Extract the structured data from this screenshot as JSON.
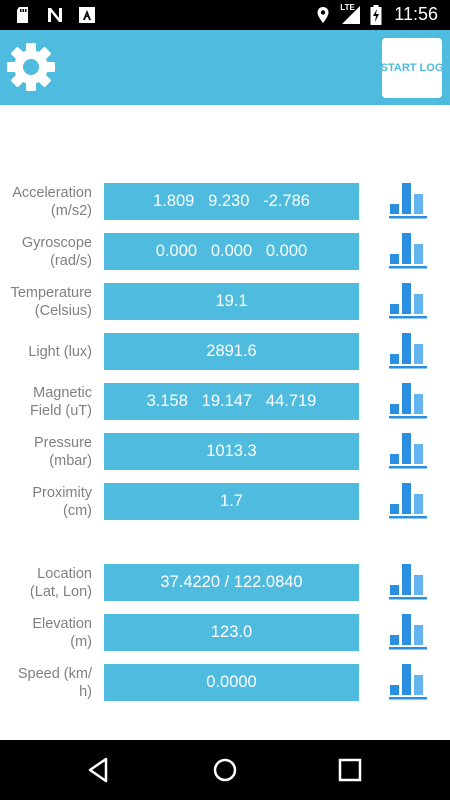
{
  "status_bar": {
    "time": "11:56",
    "network": "LTE",
    "left_icons": [
      "sd-card-icon",
      "n-notification-icon",
      "a-notification-icon"
    ],
    "right_icons": [
      "location-icon",
      "signal-icon",
      "battery-charging-icon"
    ]
  },
  "toolbar": {
    "settings_icon": "gear-icon",
    "start_log_label": "START LOG",
    "colors": {
      "primary": "#4fbbde",
      "chart_icon": "#2a8fe0",
      "label_text": "#808080"
    }
  },
  "sensors": [
    {
      "id": "acceleration",
      "label_line1": "Acceleration",
      "label_line2": "(m/s2)",
      "value": "1.809   9.230   -2.786"
    },
    {
      "id": "gyroscope",
      "label_line1": "Gyroscope",
      "label_line2": "(rad/s)",
      "value": "0.000   0.000   0.000"
    },
    {
      "id": "temperature",
      "label_line1": "Temperature",
      "label_line2": "(Celsius)",
      "value": "19.1"
    },
    {
      "id": "light",
      "label_line1": "Light (lux)",
      "label_line2": "",
      "value": "2891.6"
    },
    {
      "id": "magnetic",
      "label_line1": "Magnetic",
      "label_line2": "Field (uT)",
      "value": "3.158   19.147   44.719"
    },
    {
      "id": "pressure",
      "label_line1": "Pressure",
      "label_line2": "(mbar)",
      "value": "1013.3"
    },
    {
      "id": "proximity",
      "label_line1": "Proximity",
      "label_line2": "(cm)",
      "value": "1.7"
    }
  ],
  "gps": [
    {
      "id": "location",
      "label_line1": "Location",
      "label_line2": "(Lat, Lon)",
      "value": "37.4220 / 122.0840"
    },
    {
      "id": "elevation",
      "label_line1": "Elevation",
      "label_line2": "(m)",
      "value": "123.0"
    },
    {
      "id": "speed",
      "label_line1": "Speed (km/",
      "label_line2": "h)",
      "value": "0.0000"
    }
  ],
  "nav_bar": {
    "back_icon": "back-icon",
    "home_icon": "home-icon",
    "recents_icon": "recents-icon"
  }
}
